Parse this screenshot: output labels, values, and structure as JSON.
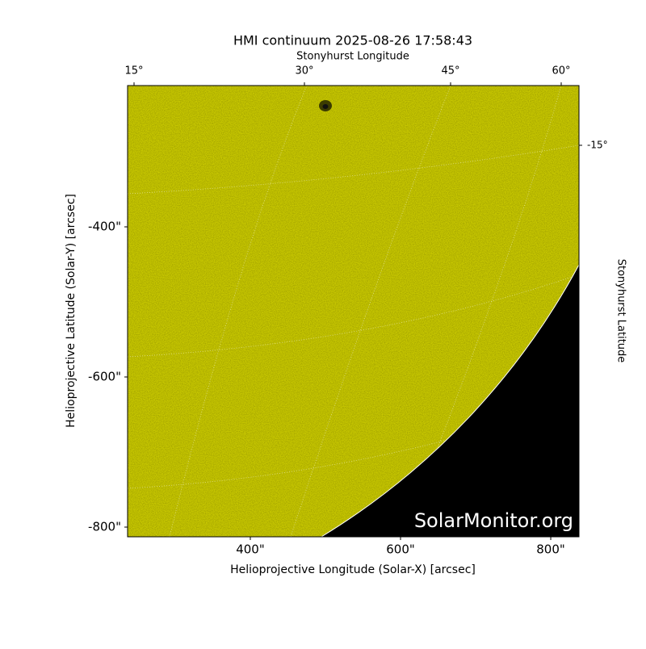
{
  "chart_data": {
    "type": "image",
    "title": "HMI continuum 2025-08-26 17:58:43",
    "x_label": "Helioprojective Longitude (Solar-X) [arcsec]",
    "y_label": "Helioprojective Latitude (Solar-Y) [arcsec]",
    "top_label": "Stonyhurst Longitude",
    "right_label": "Stonyhurst Latitude",
    "watermark": "SolarMonitor.org",
    "color": "#c8c800",
    "xlim": [
      236.6,
      837.6
    ],
    "ylim": [
      -812.9,
      -211.8
    ],
    "xticks": [
      {
        "value": 400,
        "label": "400\""
      },
      {
        "value": 600,
        "label": "600\""
      },
      {
        "value": 800,
        "label": "800\""
      }
    ],
    "yticks": [
      {
        "value": -400,
        "label": "-400\""
      },
      {
        "value": -600,
        "label": "-600\""
      },
      {
        "value": -800,
        "label": "-800\""
      }
    ],
    "top_ticks": [
      {
        "value": 15,
        "label": "15°"
      },
      {
        "value": 30,
        "label": "30°"
      },
      {
        "value": 45,
        "label": "45°"
      },
      {
        "value": 60,
        "label": "60°"
      }
    ],
    "right_ticks": [
      {
        "value": -15,
        "label": "-15°"
      }
    ]
  }
}
